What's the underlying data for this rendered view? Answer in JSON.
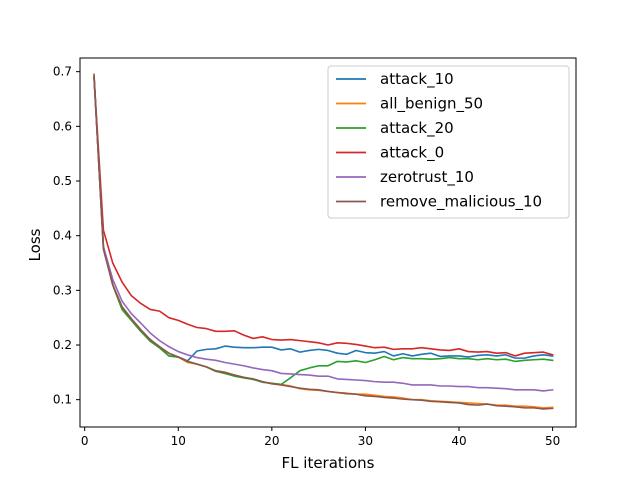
{
  "chart_data": {
    "type": "line",
    "title": "",
    "xlabel": "FL iterations",
    "ylabel": "Loss",
    "xlim": [
      -0.5,
      52.5
    ],
    "ylim": [
      0.05,
      0.725
    ],
    "xticks": [
      0,
      10,
      20,
      30,
      40,
      50
    ],
    "yticks": [
      0.1,
      0.2,
      0.3,
      0.4,
      0.5,
      0.6,
      0.7
    ],
    "grid": false,
    "legend_position": "top-right",
    "x": [
      1,
      2,
      3,
      4,
      5,
      6,
      7,
      8,
      9,
      10,
      11,
      12,
      13,
      14,
      15,
      16,
      17,
      18,
      19,
      20,
      21,
      22,
      23,
      24,
      25,
      26,
      27,
      28,
      29,
      30,
      31,
      32,
      33,
      34,
      35,
      36,
      37,
      38,
      39,
      40,
      41,
      42,
      43,
      44,
      45,
      46,
      47,
      48,
      49,
      50
    ],
    "series": [
      {
        "name": "attack_10",
        "color": "#1f77b4",
        "values": [
          0.69,
          0.38,
          0.31,
          0.265,
          0.245,
          0.225,
          0.21,
          0.195,
          0.18,
          0.178,
          0.171,
          0.189,
          0.192,
          0.193,
          0.198,
          0.196,
          0.195,
          0.195,
          0.196,
          0.196,
          0.191,
          0.193,
          0.187,
          0.19,
          0.192,
          0.19,
          0.185,
          0.183,
          0.19,
          0.186,
          0.185,
          0.188,
          0.18,
          0.184,
          0.18,
          0.183,
          0.185,
          0.179,
          0.18,
          0.18,
          0.178,
          0.181,
          0.182,
          0.18,
          0.182,
          0.176,
          0.176,
          0.18,
          0.182,
          0.18
        ]
      },
      {
        "name": "all_benign_50",
        "color": "#ff7f0e",
        "values": [
          0.69,
          0.38,
          0.31,
          0.265,
          0.245,
          0.225,
          0.207,
          0.195,
          0.185,
          0.178,
          0.168,
          0.165,
          0.16,
          0.152,
          0.148,
          0.145,
          0.14,
          0.138,
          0.132,
          0.13,
          0.128,
          0.125,
          0.12,
          0.118,
          0.117,
          0.115,
          0.113,
          0.112,
          0.11,
          0.11,
          0.108,
          0.106,
          0.105,
          0.103,
          0.1,
          0.1,
          0.098,
          0.097,
          0.096,
          0.095,
          0.094,
          0.093,
          0.092,
          0.09,
          0.09,
          0.088,
          0.088,
          0.087,
          0.085,
          0.086
        ]
      },
      {
        "name": "attack_20",
        "color": "#2ca02c",
        "values": [
          0.69,
          0.38,
          0.31,
          0.265,
          0.245,
          0.225,
          0.207,
          0.195,
          0.18,
          0.178,
          0.17,
          0.165,
          0.16,
          0.152,
          0.148,
          0.143,
          0.14,
          0.137,
          0.132,
          0.13,
          0.128,
          0.14,
          0.153,
          0.158,
          0.162,
          0.162,
          0.17,
          0.169,
          0.171,
          0.168,
          0.173,
          0.179,
          0.173,
          0.177,
          0.175,
          0.175,
          0.174,
          0.175,
          0.177,
          0.175,
          0.175,
          0.173,
          0.175,
          0.173,
          0.174,
          0.17,
          0.172,
          0.173,
          0.174,
          0.172
        ]
      },
      {
        "name": "attack_0",
        "color": "#d62728",
        "values": [
          0.69,
          0.41,
          0.35,
          0.315,
          0.29,
          0.276,
          0.265,
          0.262,
          0.25,
          0.245,
          0.238,
          0.232,
          0.23,
          0.225,
          0.225,
          0.226,
          0.218,
          0.212,
          0.215,
          0.21,
          0.209,
          0.21,
          0.208,
          0.206,
          0.204,
          0.2,
          0.204,
          0.203,
          0.201,
          0.198,
          0.195,
          0.196,
          0.192,
          0.193,
          0.193,
          0.195,
          0.193,
          0.191,
          0.19,
          0.193,
          0.188,
          0.187,
          0.188,
          0.185,
          0.186,
          0.18,
          0.185,
          0.186,
          0.187,
          0.182
        ]
      },
      {
        "name": "zerotrust_10",
        "color": "#9467bd",
        "values": [
          0.69,
          0.38,
          0.32,
          0.28,
          0.257,
          0.24,
          0.222,
          0.208,
          0.197,
          0.188,
          0.182,
          0.177,
          0.174,
          0.172,
          0.168,
          0.165,
          0.162,
          0.158,
          0.155,
          0.153,
          0.148,
          0.147,
          0.146,
          0.145,
          0.143,
          0.143,
          0.138,
          0.137,
          0.136,
          0.135,
          0.133,
          0.132,
          0.132,
          0.13,
          0.127,
          0.127,
          0.127,
          0.125,
          0.125,
          0.124,
          0.124,
          0.122,
          0.122,
          0.121,
          0.12,
          0.118,
          0.118,
          0.118,
          0.116,
          0.118
        ]
      },
      {
        "name": "remove_malicious_10",
        "color": "#8c564b",
        "values": [
          0.695,
          0.375,
          0.31,
          0.27,
          0.248,
          0.228,
          0.21,
          0.197,
          0.185,
          0.178,
          0.17,
          0.165,
          0.16,
          0.153,
          0.15,
          0.145,
          0.141,
          0.138,
          0.133,
          0.129,
          0.127,
          0.124,
          0.121,
          0.119,
          0.118,
          0.115,
          0.113,
          0.111,
          0.11,
          0.107,
          0.106,
          0.104,
          0.103,
          0.101,
          0.1,
          0.099,
          0.097,
          0.096,
          0.095,
          0.094,
          0.091,
          0.09,
          0.092,
          0.089,
          0.088,
          0.087,
          0.085,
          0.085,
          0.083,
          0.084
        ]
      }
    ]
  }
}
